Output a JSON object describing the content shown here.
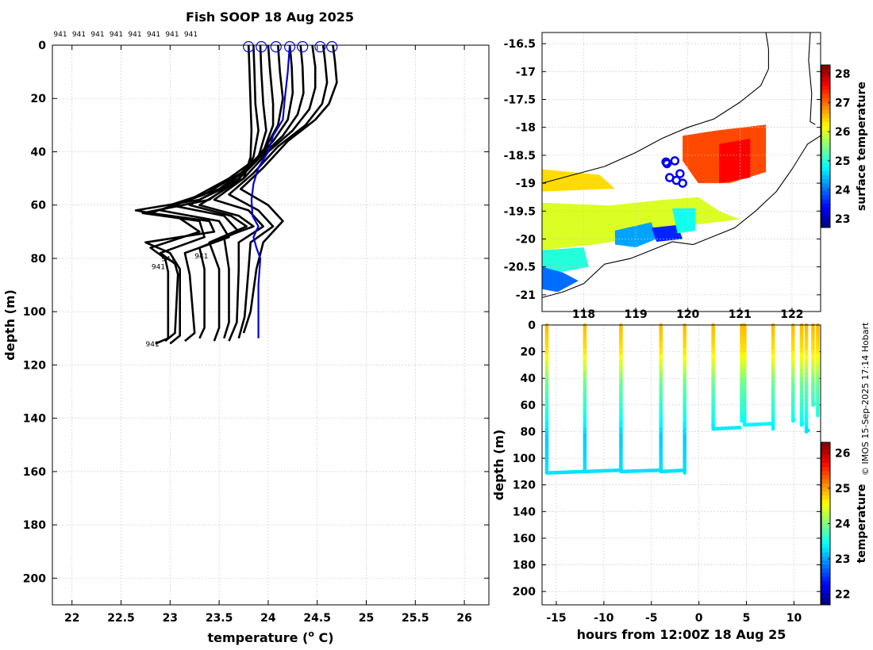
{
  "title": "Fish SOOP 18 Aug 2025",
  "credit": "© IMOS 15-Sep-2025 17:14 Hobart",
  "chart_data": [
    {
      "id": "profiles",
      "type": "line",
      "xlabel": "temperature (",
      "xlabel_sup": "o",
      "xlabel_tail": " C)",
      "ylabel": "depth (m)",
      "xlim": [
        21.8,
        26.25
      ],
      "ylim": [
        0,
        210
      ],
      "y_reversed": true,
      "grid": true,
      "xticks": [
        "22",
        "22.5",
        "23",
        "23.5",
        "24",
        "24.5",
        "25",
        "25.5",
        "26"
      ],
      "yticks": [
        "0",
        "20",
        "40",
        "60",
        "80",
        "100",
        "120",
        "140",
        "160",
        "180",
        "200"
      ],
      "top_labels": [
        "941",
        "941",
        "941",
        "941",
        "941",
        "941",
        "941",
        "941"
      ],
      "point_labels": [
        {
          "text": "941",
          "x": 22.98,
          "depth": 81
        },
        {
          "text": "941",
          "x": 23.32,
          "depth": 80
        },
        {
          "text": "941",
          "x": 22.88,
          "depth": 84
        },
        {
          "text": "941",
          "x": 22.82,
          "depth": 113
        }
      ],
      "start_markers_x": [
        23.8,
        23.93,
        24.08,
        24.22,
        24.35,
        24.53,
        24.65
      ],
      "series": [
        {
          "color": "#000000",
          "depth": [
            0,
            10,
            22,
            32,
            42,
            50,
            58,
            62,
            65,
            70,
            76,
            80,
            85,
            110,
            112
          ],
          "temp": [
            23.8,
            23.81,
            23.82,
            23.83,
            23.82,
            23.75,
            23.3,
            22.65,
            23.1,
            23.3,
            22.8,
            22.95,
            22.98,
            22.98,
            22.85
          ]
        },
        {
          "color": "#000000",
          "depth": [
            0,
            10,
            22,
            32,
            42,
            50,
            58,
            63,
            66,
            72,
            78,
            82,
            86,
            108,
            111
          ],
          "temp": [
            23.85,
            23.86,
            23.87,
            23.9,
            23.85,
            23.7,
            23.4,
            22.72,
            23.3,
            23.35,
            22.9,
            23.05,
            23.08,
            23.05,
            22.95
          ]
        },
        {
          "color": "#000000",
          "depth": [
            0,
            10,
            22,
            32,
            42,
            50,
            58,
            63,
            66,
            70,
            74,
            78,
            84,
            109,
            112
          ],
          "temp": [
            23.92,
            23.93,
            23.95,
            23.98,
            23.9,
            23.6,
            23.2,
            22.8,
            23.4,
            23.45,
            22.75,
            23.0,
            23.1,
            23.1,
            23.0
          ]
        },
        {
          "color": "#000000",
          "depth": [
            0,
            10,
            22,
            30,
            40,
            48,
            56,
            62,
            66,
            72,
            78,
            86,
            108,
            111
          ],
          "temp": [
            24.0,
            24.02,
            24.05,
            24.05,
            23.95,
            23.72,
            23.35,
            22.9,
            23.5,
            23.6,
            23.15,
            23.2,
            23.25,
            23.15
          ]
        },
        {
          "color": "#000000",
          "depth": [
            0,
            10,
            20,
            30,
            38,
            46,
            54,
            60,
            64,
            70,
            76,
            84,
            106,
            110
          ],
          "temp": [
            24.1,
            24.12,
            24.15,
            24.1,
            23.98,
            23.8,
            23.5,
            23.0,
            23.55,
            23.7,
            23.3,
            23.35,
            23.35,
            23.3
          ]
        },
        {
          "color": "#000000",
          "depth": [
            0,
            8,
            18,
            28,
            36,
            44,
            52,
            60,
            64,
            68,
            74,
            84,
            106,
            111
          ],
          "temp": [
            24.22,
            24.24,
            24.25,
            24.2,
            24.05,
            23.85,
            23.6,
            23.2,
            23.62,
            23.78,
            23.4,
            23.5,
            23.5,
            23.45
          ]
        },
        {
          "color": "#000000",
          "depth": [
            0,
            8,
            18,
            26,
            34,
            42,
            52,
            60,
            64,
            68,
            72,
            84,
            104,
            110
          ],
          "temp": [
            24.33,
            24.35,
            24.36,
            24.3,
            24.15,
            23.92,
            23.65,
            23.3,
            23.7,
            23.85,
            23.55,
            23.6,
            23.6,
            23.55
          ]
        },
        {
          "color": "#000000",
          "depth": [
            0,
            8,
            16,
            24,
            32,
            40,
            50,
            58,
            62,
            68,
            74,
            84,
            104,
            111
          ],
          "temp": [
            24.45,
            24.48,
            24.48,
            24.42,
            24.25,
            24.0,
            23.75,
            23.45,
            23.8,
            23.95,
            23.7,
            23.7,
            23.68,
            23.6
          ]
        },
        {
          "color": "#000000",
          "depth": [
            0,
            6,
            14,
            22,
            30,
            38,
            48,
            56,
            62,
            68,
            74,
            84,
            102,
            110
          ],
          "temp": [
            24.56,
            24.58,
            24.6,
            24.55,
            24.38,
            24.1,
            23.85,
            23.6,
            23.9,
            24.05,
            23.82,
            23.8,
            23.76,
            23.7
          ]
        },
        {
          "color": "#000000",
          "depth": [
            0,
            6,
            14,
            22,
            28,
            36,
            46,
            54,
            60,
            66,
            74,
            84,
            100,
            108
          ],
          "temp": [
            24.66,
            24.68,
            24.7,
            24.62,
            24.48,
            24.2,
            23.95,
            23.72,
            24.0,
            24.15,
            23.95,
            23.88,
            23.82,
            23.75
          ]
        },
        {
          "color": "#0000dd",
          "depth": [
            0,
            10,
            20,
            28,
            34,
            40,
            46,
            52,
            58,
            64,
            68,
            72,
            76,
            80,
            90,
            100,
            110
          ],
          "temp": [
            24.22,
            24.2,
            24.17,
            24.15,
            24.05,
            24.0,
            23.9,
            23.85,
            23.83,
            23.84,
            23.9,
            23.85,
            23.88,
            23.92,
            23.9,
            23.9,
            23.9
          ]
        }
      ]
    },
    {
      "id": "map",
      "type": "heatmap",
      "xlim": [
        117.2,
        122.55
      ],
      "ylim": [
        -21.3,
        -16.3
      ],
      "xticks": [
        "118",
        "119",
        "120",
        "121",
        "122"
      ],
      "yticks": [
        "-16.5",
        "-17",
        "-17.5",
        "-18",
        "-18.5",
        "-19",
        "-19.5",
        "-20",
        "-20.5",
        "-21"
      ],
      "colorbar_label": "surface temperature",
      "colorbar_ticks": [
        "23",
        "24",
        "25",
        "26",
        "27",
        "28"
      ],
      "colorbar_range": [
        22.7,
        28.3
      ],
      "sst_patches": [
        {
          "poly": [
            [
              119.9,
              -18.15
            ],
            [
              120.6,
              -18.05
            ],
            [
              121.5,
              -17.95
            ],
            [
              121.5,
              -18.8
            ],
            [
              120.8,
              -19.0
            ],
            [
              120.2,
              -19.0
            ],
            [
              119.9,
              -18.6
            ]
          ],
          "value": 27.2
        },
        {
          "poly": [
            [
              120.6,
              -18.3
            ],
            [
              121.2,
              -18.2
            ],
            [
              121.2,
              -18.9
            ],
            [
              120.6,
              -19.0
            ]
          ],
          "value": 27.6
        },
        {
          "poly": [
            [
              117.2,
              -18.75
            ],
            [
              118.3,
              -18.85
            ],
            [
              118.6,
              -19.1
            ],
            [
              117.2,
              -19.15
            ]
          ],
          "value": 26.4
        },
        {
          "poly": [
            [
              117.2,
              -19.35
            ],
            [
              118.5,
              -19.4
            ],
            [
              119.5,
              -19.3
            ],
            [
              120.2,
              -19.25
            ],
            [
              120.6,
              -19.5
            ],
            [
              121.0,
              -19.65
            ],
            [
              119.6,
              -19.8
            ],
            [
              118.9,
              -20.0
            ],
            [
              118.2,
              -20.1
            ],
            [
              117.2,
              -20.2
            ]
          ],
          "value": 26.0
        },
        {
          "poly": [
            [
              117.2,
              -20.2
            ],
            [
              118.0,
              -20.15
            ],
            [
              118.1,
              -20.5
            ],
            [
              117.5,
              -20.6
            ],
            [
              117.2,
              -20.5
            ]
          ],
          "value": 25.0
        },
        {
          "poly": [
            [
              117.2,
              -20.5
            ],
            [
              117.6,
              -20.6
            ],
            [
              117.9,
              -20.75
            ],
            [
              117.5,
              -20.95
            ],
            [
              117.2,
              -20.9
            ]
          ],
          "value": 24.0
        },
        {
          "poly": [
            [
              118.6,
              -19.85
            ],
            [
              119.3,
              -19.7
            ],
            [
              119.4,
              -20.0
            ],
            [
              119.0,
              -20.15
            ],
            [
              118.6,
              -20.1
            ]
          ],
          "value": 24.3
        },
        {
          "poly": [
            [
              119.3,
              -19.8
            ],
            [
              119.8,
              -19.75
            ],
            [
              119.9,
              -20.0
            ],
            [
              119.4,
              -20.05
            ]
          ],
          "value": 23.6
        },
        {
          "poly": [
            [
              119.7,
              -19.45
            ],
            [
              120.15,
              -19.45
            ],
            [
              120.15,
              -19.85
            ],
            [
              119.8,
              -19.9
            ]
          ],
          "value": 24.9
        }
      ],
      "ship_positions": [
        [
          119.58,
          -18.62
        ],
        [
          119.75,
          -18.6
        ],
        [
          119.65,
          -18.9
        ],
        [
          119.78,
          -18.95
        ],
        [
          119.85,
          -18.83
        ],
        [
          119.9,
          -19.0
        ],
        [
          119.6,
          -18.65
        ]
      ],
      "coast_label": ""
    },
    {
      "id": "timeseries",
      "type": "scatter",
      "xlabel": "hours from 12:00Z 18 Aug 25",
      "ylabel": "depth (m)",
      "xlim": [
        -16.5,
        12.8
      ],
      "ylim": [
        0,
        210
      ],
      "y_reversed": true,
      "grid": true,
      "xticks": [
        "-15",
        "-10",
        "-5",
        "0",
        "5",
        "10"
      ],
      "yticks": [
        "0",
        "20",
        "40",
        "60",
        "80",
        "100",
        "120",
        "140",
        "160",
        "180",
        "200"
      ],
      "colorbar_label": "temperature",
      "colorbar_ticks": [
        "22",
        "23",
        "24",
        "25",
        "26"
      ],
      "colorbar_range": [
        21.7,
        26.3
      ],
      "casts": [
        {
          "hours": -16.0,
          "bottom": 111,
          "bottom_end": -12.1
        },
        {
          "hours": -12.0,
          "bottom": 110,
          "bottom_end": -8.4
        },
        {
          "hours": -8.2,
          "bottom": 110,
          "bottom_end": -4.2
        },
        {
          "hours": -4.0,
          "bottom": 110,
          "bottom_end": -1.5
        },
        {
          "hours": -1.5,
          "bottom": 111,
          "bottom_end": -1.5
        },
        {
          "hours": 1.5,
          "bottom": 78,
          "bottom_end": 4.3
        },
        {
          "hours": 4.5,
          "bottom": 72,
          "bottom_end": 4.7
        },
        {
          "hours": 4.8,
          "bottom": 75,
          "bottom_end": 7.7
        },
        {
          "hours": 7.8,
          "bottom": 78,
          "bottom_end": 7.8
        },
        {
          "hours": 9.9,
          "bottom": 72,
          "bottom_end": 10.0
        },
        {
          "hours": 10.8,
          "bottom": 75,
          "bottom_end": 10.9
        },
        {
          "hours": 11.3,
          "bottom": 80,
          "bottom_end": 11.5
        },
        {
          "hours": 12.0,
          "bottom": 60,
          "bottom_end": 12.1
        },
        {
          "hours": 12.5,
          "bottom": 68,
          "bottom_end": 12.5
        }
      ],
      "temp_by_depth": [
        [
          0,
          24.9
        ],
        [
          20,
          24.7
        ],
        [
          30,
          24.4
        ],
        [
          45,
          23.9
        ],
        [
          65,
          23.6
        ],
        [
          85,
          23.2
        ],
        [
          112,
          23.3
        ]
      ]
    }
  ]
}
